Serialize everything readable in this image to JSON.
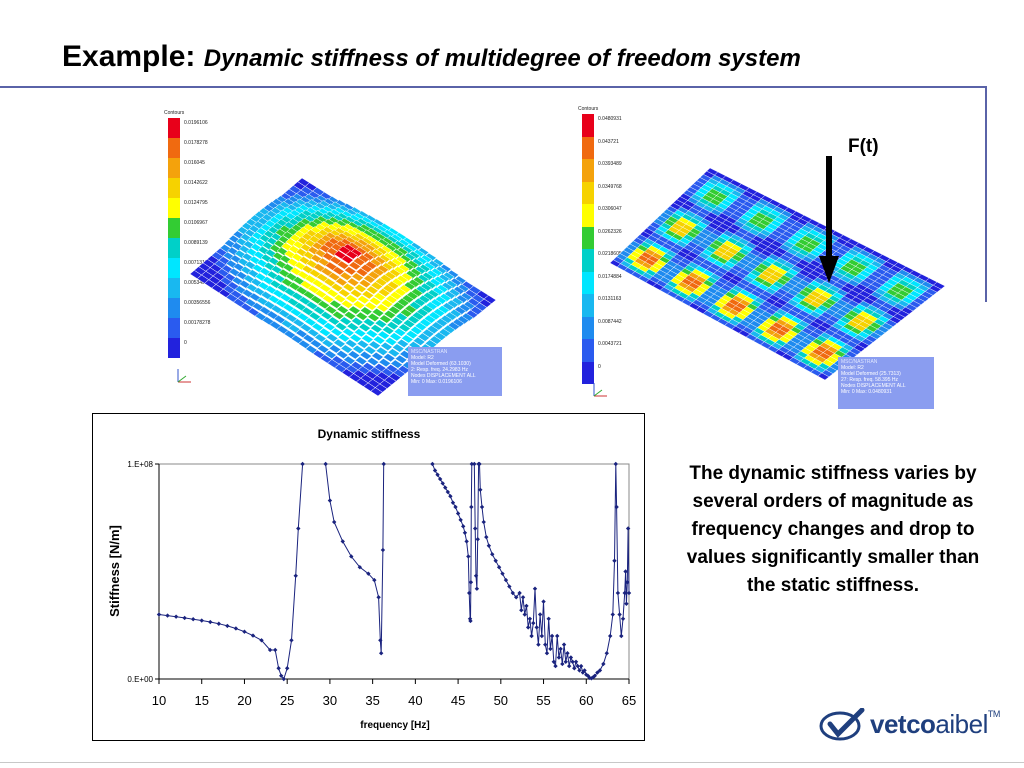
{
  "title": {
    "main": "Example:",
    "subtitle": "Dynamic stiffness of multidegree of freedom system"
  },
  "left_plot": {
    "legend_title": "Contours",
    "legend_values": [
      "0.0196106",
      "0.0178278",
      "0.016045",
      "0.0142622",
      "0.0124795",
      "0.0106967",
      "0.0089139",
      "0.00713112",
      "0.00534834",
      "0.00356556",
      "0.00178278",
      "0"
    ],
    "info_header": "MSC/NASTRAN",
    "info_lines": [
      "Model: R2",
      "Model Deformed (63.1030)",
      "2: Resp. freq. 24.2983 Hz",
      "Nodes DISPLACEMENT ALL",
      "Min: 0 Max: 0.0196106"
    ]
  },
  "right_plot": {
    "legend_title": "Contours",
    "legend_values": [
      "0.0480931",
      "0.043721",
      "0.0393489",
      "0.0349768",
      "0.0306047",
      "0.0262326",
      "0.0218605",
      "0.0174884",
      "0.0131163",
      "0.0087442",
      "0.0043721",
      "0"
    ],
    "info_header": "MSC/NASTRAN",
    "info_lines": [
      "Model: R2",
      "Model Deformed (25.7313)",
      "27: Resp. freq. 58.395 Hz",
      "Nodes DISPLACEMENT ALL",
      "Min: 0 Max: 0.0480931"
    ],
    "force_label": "F(t)"
  },
  "contour_colors": [
    "#e8001a",
    "#f06a10",
    "#f4a20c",
    "#f6d200",
    "#ffff00",
    "#33cc33",
    "#00d0c8",
    "#00e6ff",
    "#19b8f0",
    "#1f8bef",
    "#2a5bef",
    "#2222dd"
  ],
  "chart_data": {
    "type": "scatter",
    "title": "Dynamic stiffness",
    "xlabel": "frequency [Hz]",
    "ylabel": "Stiffness [N/m]",
    "xlim": [
      10,
      65
    ],
    "ylim": [
      0,
      100000000
    ],
    "xticks": [
      10,
      15,
      20,
      25,
      30,
      35,
      40,
      45,
      50,
      55,
      60,
      65
    ],
    "yticks": [
      {
        "value": 0,
        "label": "0.E+00"
      },
      {
        "value": 100000000,
        "label": "1.E+08"
      }
    ],
    "grid": false,
    "series": [
      {
        "color": "#1a237e",
        "segments": [
          [
            [
              10.0,
              30000000
            ],
            [
              11,
              29500000
            ],
            [
              12,
              29000000
            ],
            [
              13,
              28400000
            ],
            [
              14,
              27800000
            ],
            [
              15,
              27200000
            ],
            [
              16,
              26500000
            ],
            [
              17,
              25700000
            ],
            [
              18,
              24700000
            ],
            [
              19,
              23500000
            ],
            [
              20,
              22000000
            ],
            [
              21,
              20200000
            ],
            [
              22,
              18000000
            ],
            [
              23,
              13500000
            ],
            [
              23.6,
              13500000
            ],
            [
              24.0,
              5000000
            ],
            [
              24.3,
              1500000
            ],
            [
              24.6,
              0
            ],
            [
              25.0,
              5000000
            ],
            [
              25.5,
              18000000
            ],
            [
              26.0,
              48000000
            ],
            [
              26.3,
              70000000
            ],
            [
              26.8,
              100000000
            ]
          ],
          [
            [
              29.5,
              100000000
            ],
            [
              30.0,
              83000000
            ],
            [
              30.5,
              73000000
            ],
            [
              31.5,
              64000000
            ],
            [
              32.5,
              57000000
            ],
            [
              33.5,
              52000000
            ],
            [
              34.5,
              49000000
            ],
            [
              35.2,
              46000000
            ],
            [
              35.7,
              38000000
            ],
            [
              35.9,
              18000000
            ],
            [
              36.0,
              12000000
            ],
            [
              36.2,
              60000000
            ],
            [
              36.3,
              100000000
            ]
          ],
          [
            [
              42.0,
              100000000
            ],
            [
              42.3,
              97000000
            ],
            [
              42.6,
              95000000
            ],
            [
              42.9,
              93000000
            ],
            [
              43.2,
              91000000
            ],
            [
              43.5,
              89000000
            ],
            [
              43.8,
              87000000
            ],
            [
              44.1,
              85000000
            ],
            [
              44.4,
              82000000
            ],
            [
              44.7,
              80000000
            ],
            [
              45.0,
              77000000
            ],
            [
              45.3,
              74000000
            ],
            [
              45.6,
              71000000
            ],
            [
              45.8,
              68000000
            ],
            [
              46.0,
              64000000
            ],
            [
              46.2,
              57000000
            ],
            [
              46.3,
              40000000
            ],
            [
              46.4,
              28000000
            ],
            [
              46.45,
              27000000
            ],
            [
              46.5,
              45000000
            ],
            [
              46.55,
              80000000
            ],
            [
              46.6,
              100000000
            ]
          ],
          [
            [
              46.9,
              100000000
            ],
            [
              47.0,
              70000000
            ],
            [
              47.1,
              48000000
            ],
            [
              47.2,
              42000000
            ],
            [
              47.3,
              65000000
            ],
            [
              47.4,
              100000000
            ]
          ],
          [
            [
              47.5,
              100000000
            ],
            [
              47.6,
              88000000
            ],
            [
              47.8,
              80000000
            ],
            [
              48.0,
              73000000
            ],
            [
              48.3,
              66000000
            ],
            [
              48.6,
              62000000
            ],
            [
              49.0,
              58000000
            ],
            [
              49.4,
              55000000
            ],
            [
              49.8,
              52000000
            ],
            [
              50.2,
              49000000
            ],
            [
              50.6,
              46000000
            ],
            [
              51.0,
              43000000
            ],
            [
              51.4,
              40000000
            ],
            [
              51.8,
              38000000
            ],
            [
              52.2,
              40000000
            ],
            [
              52.4,
              32000000
            ],
            [
              52.6,
              38000000
            ],
            [
              52.8,
              30000000
            ],
            [
              53.0,
              34000000
            ],
            [
              53.2,
              24000000
            ],
            [
              53.4,
              28000000
            ],
            [
              53.6,
              20000000
            ],
            [
              53.8,
              26000000
            ],
            [
              54.0,
              42000000
            ],
            [
              54.2,
              24000000
            ],
            [
              54.4,
              16000000
            ],
            [
              54.6,
              30000000
            ],
            [
              54.8,
              20000000
            ],
            [
              55.0,
              36000000
            ],
            [
              55.2,
              16000000
            ],
            [
              55.4,
              12000000
            ],
            [
              55.6,
              28000000
            ],
            [
              55.8,
              14000000
            ],
            [
              56.0,
              20000000
            ],
            [
              56.2,
              8000000
            ],
            [
              56.4,
              6000000
            ],
            [
              56.6,
              20000000
            ],
            [
              56.8,
              10000000
            ],
            [
              57.0,
              14000000
            ],
            [
              57.2,
              7000000
            ],
            [
              57.4,
              16000000
            ],
            [
              57.6,
              8000000
            ],
            [
              57.8,
              12000000
            ],
            [
              58.0,
              6000000
            ],
            [
              58.2,
              10000000
            ],
            [
              58.4,
              8000000
            ],
            [
              58.6,
              5000000
            ],
            [
              58.8,
              8000000
            ],
            [
              59.0,
              6000000
            ],
            [
              59.2,
              4000000
            ],
            [
              59.4,
              6000000
            ],
            [
              59.6,
              3000000
            ],
            [
              59.8,
              4000000
            ],
            [
              60.0,
              2000000
            ],
            [
              60.2,
              1500000
            ],
            [
              60.4,
              500000
            ],
            [
              60.6,
              300000
            ],
            [
              60.8,
              800000
            ],
            [
              61.0,
              1500000
            ],
            [
              61.3,
              3000000
            ],
            [
              61.6,
              4000000
            ],
            [
              62.0,
              7000000
            ],
            [
              62.4,
              12000000
            ],
            [
              62.8,
              20000000
            ],
            [
              63.1,
              30000000
            ],
            [
              63.3,
              55000000
            ],
            [
              63.45,
              100000000
            ],
            [
              63.55,
              80000000
            ],
            [
              63.7,
              40000000
            ],
            [
              63.9,
              30000000
            ],
            [
              64.1,
              20000000
            ],
            [
              64.3,
              28000000
            ],
            [
              64.5,
              40000000
            ],
            [
              64.6,
              50000000
            ],
            [
              64.7,
              35000000
            ],
            [
              64.8,
              45000000
            ],
            [
              64.9,
              70000000
            ],
            [
              65.0,
              40000000
            ]
          ]
        ]
      }
    ]
  },
  "description": "The dynamic stiffness varies by several orders of magnitude as frequency changes and drop to values significantly smaller than the static stiffness.",
  "logo": {
    "bold": "vetco",
    "light": "aibel",
    "tm": "TM"
  }
}
